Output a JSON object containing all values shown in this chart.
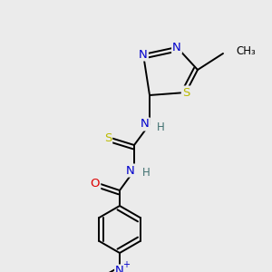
{
  "bg_color": "#ebebeb",
  "atom_colors": {
    "C": "#000000",
    "N": "#0000cc",
    "S": "#bbbb00",
    "O": "#dd0000",
    "H": "#407070",
    "methyl": "#000000"
  },
  "bond_color": "#000000",
  "fig_width": 3.0,
  "fig_height": 3.0,
  "dpi": 100,
  "font_size_atom": 9.5,
  "font_size_h": 8.5,
  "font_size_methyl": 8.5
}
